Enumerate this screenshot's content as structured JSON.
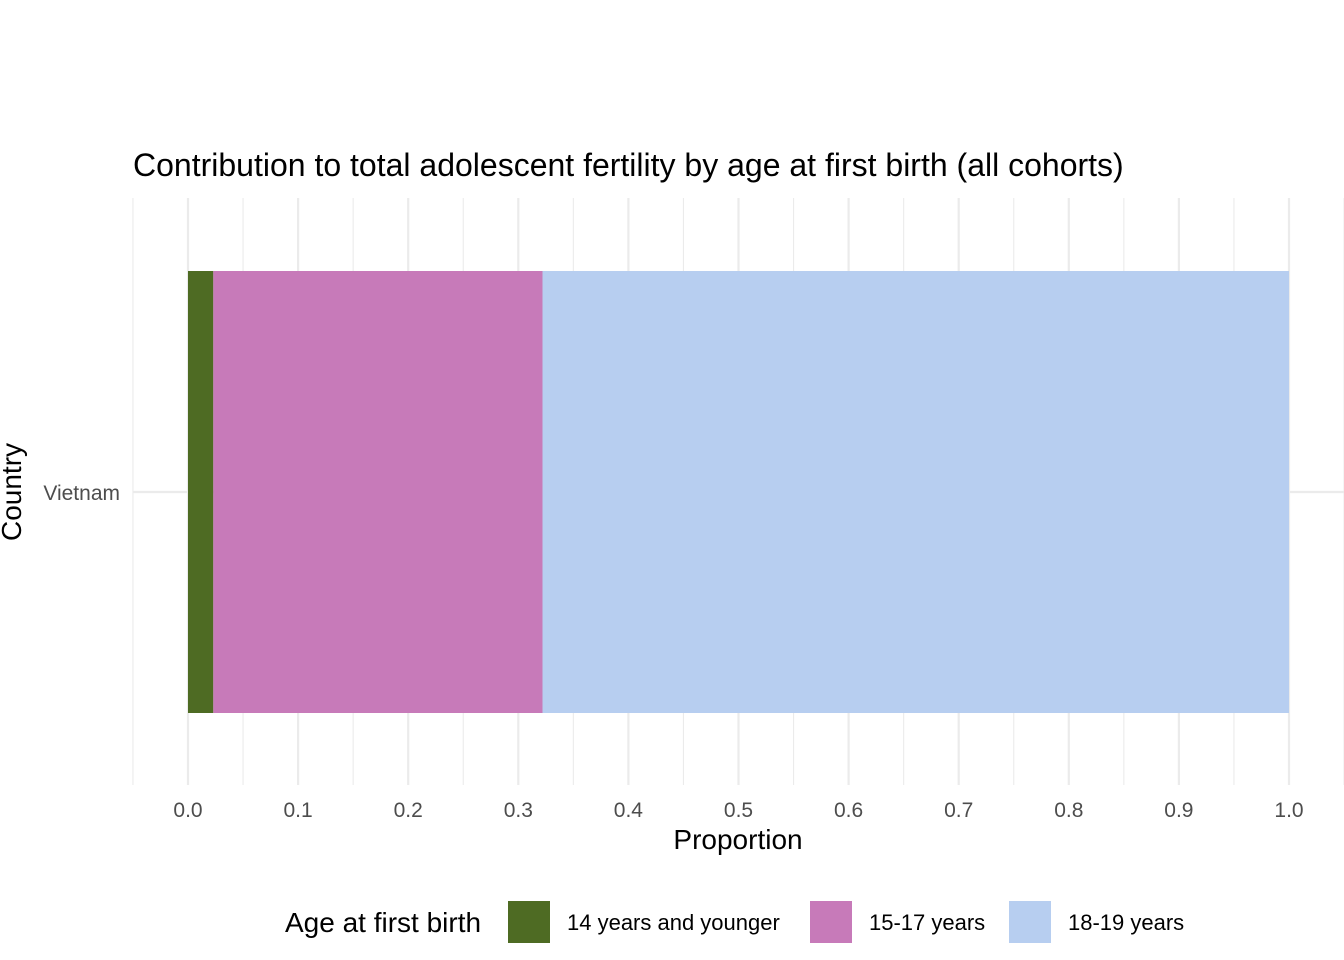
{
  "chart_data": {
    "type": "bar",
    "orientation": "horizontal",
    "stacked": true,
    "title": "Contribution to total adolescent fertility by age at first birth (all cohorts)",
    "xlabel": "Proportion",
    "ylabel": "Country",
    "categories": [
      "Vietnam"
    ],
    "xlim": [
      -0.05,
      1.05
    ],
    "x_ticks": [
      "0.0",
      "0.1",
      "0.2",
      "0.3",
      "0.4",
      "0.5",
      "0.6",
      "0.7",
      "0.8",
      "0.9",
      "1.0"
    ],
    "grid": true,
    "legend_position": "bottom",
    "legend_title": "Age at first birth",
    "series": [
      {
        "name": "14 years and younger",
        "color": "#4e6b23",
        "values": [
          0.023
        ]
      },
      {
        "name": "15-17 years",
        "color": "#c77ab9",
        "values": [
          0.299
        ]
      },
      {
        "name": "18-19 years",
        "color": "#b7cef0",
        "values": [
          0.678
        ]
      }
    ]
  }
}
